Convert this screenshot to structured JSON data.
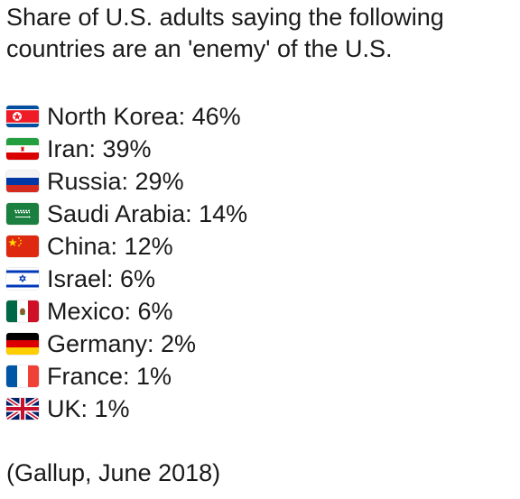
{
  "heading": {
    "line1": "Share of U.S. adults saying the following",
    "line2": "countries are an 'enemy' of the U.S."
  },
  "items": [
    {
      "icon": "north-korea-flag-icon",
      "label": "North Korea: 46%"
    },
    {
      "icon": "iran-flag-icon",
      "label": "Iran: 39%"
    },
    {
      "icon": "russia-flag-icon",
      "label": "Russia: 29%"
    },
    {
      "icon": "saudi-arabia-flag-icon",
      "label": "Saudi Arabia: 14%"
    },
    {
      "icon": "china-flag-icon",
      "label": "China: 12%"
    },
    {
      "icon": "israel-flag-icon",
      "label": "Israel: 6%"
    },
    {
      "icon": "mexico-flag-icon",
      "label": "Mexico: 6%"
    },
    {
      "icon": "germany-flag-icon",
      "label": "Germany: 2%"
    },
    {
      "icon": "france-flag-icon",
      "label": "France: 1%"
    },
    {
      "icon": "uk-flag-icon",
      "label": "UK: 1%"
    }
  ],
  "source": "(Gallup, June 2018)"
}
